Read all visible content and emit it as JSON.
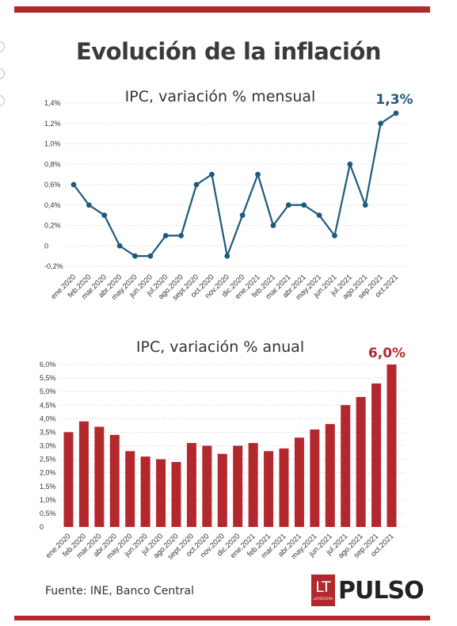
{
  "page": {
    "title": "Evolución de la inflación",
    "source": "Fuente: INE, Banco Central",
    "logo_mark": "LT",
    "logo_mark_sub": "LATERCERA",
    "logo_word": "PULSO"
  },
  "chart_data": [
    {
      "type": "line",
      "title": "IPC, variación % mensual",
      "categories": [
        "ene.2020",
        "feb.2020",
        "mar.2020",
        "abr.2020",
        "may.2020",
        "jun.2020",
        "jul.2020",
        "ago.2020",
        "sept.2020",
        "oct.2020",
        "nov.2020",
        "dic.2020",
        "ene.2021",
        "feb.2021",
        "mar.2021",
        "abr.2021",
        "may.2021",
        "jun.2021",
        "jul.2021",
        "ago.2021",
        "sep.2021",
        "oct.2021"
      ],
      "values": [
        0.6,
        0.4,
        0.3,
        0.0,
        -0.1,
        -0.1,
        0.1,
        0.1,
        0.6,
        0.7,
        -0.1,
        0.3,
        0.7,
        0.2,
        0.4,
        0.4,
        0.3,
        0.1,
        0.8,
        0.4,
        1.2,
        1.3
      ],
      "ylim": [
        -0.2,
        1.4
      ],
      "yticks": [
        "-0,2%",
        "0",
        "0,2%",
        "0,4%",
        "0,6%",
        "0,8%",
        "1,0%",
        "1,2%",
        "1,4%"
      ],
      "last_label": "1,3%",
      "color": "#1d5a7c",
      "grid": true
    },
    {
      "type": "bar",
      "title": "IPC, variación % anual",
      "categories": [
        "ene.2020",
        "feb.2020",
        "mar.2020",
        "abr.2020",
        "may.2020",
        "jun.2020",
        "jul.2020",
        "ago.2020",
        "sept.2020",
        "oct.2020",
        "nov.2020",
        "dic.2020",
        "ene.2021",
        "feb.2021",
        "mar.2021",
        "abr.2021",
        "may.2021",
        "jun.2021",
        "jul.2021",
        "ago.2021",
        "sep.2021",
        "oct.2021"
      ],
      "values": [
        3.5,
        3.9,
        3.7,
        3.4,
        2.8,
        2.6,
        2.5,
        2.4,
        3.1,
        3.0,
        2.7,
        3.0,
        3.1,
        2.8,
        2.9,
        3.3,
        3.6,
        3.8,
        4.5,
        4.8,
        5.3,
        6.0
      ],
      "ylim": [
        0,
        6.0
      ],
      "yticks": [
        "0",
        "0,5%",
        "1,0%",
        "1,5%",
        "2,0%",
        "2,5%",
        "3,0%",
        "3,5%",
        "4,0%",
        "4,5%",
        "5,0%",
        "5,5%",
        "6,0%"
      ],
      "last_label": "6,0%",
      "color": "#b3282d",
      "grid": true
    }
  ]
}
